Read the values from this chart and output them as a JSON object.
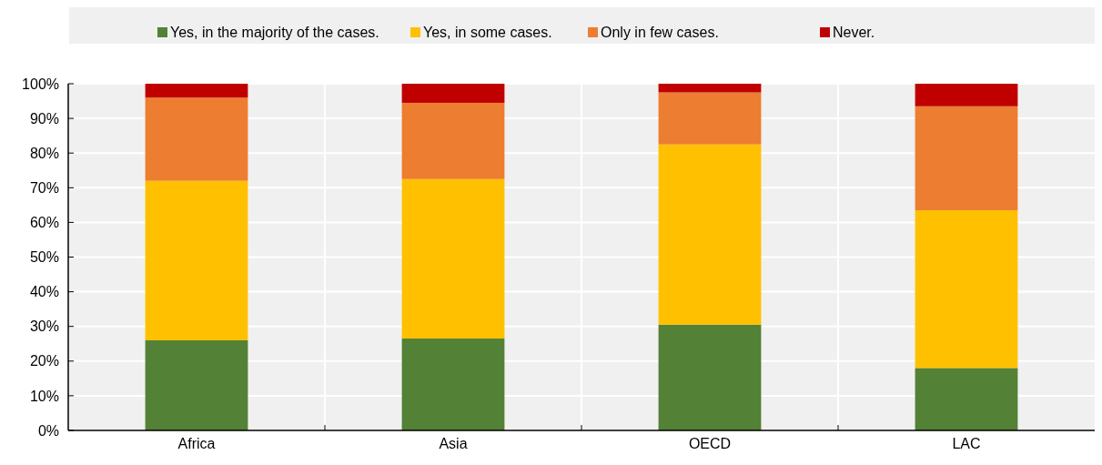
{
  "chart_data": {
    "type": "bar",
    "stacked": true,
    "categories": [
      "Africa",
      "Asia",
      "OECD",
      "LAC"
    ],
    "series": [
      {
        "name": "Yes, in the majority of the cases.",
        "color": "#538135",
        "values": [
          26,
          26.5,
          30.5,
          18
        ]
      },
      {
        "name": "Yes, in some cases.",
        "color": "#ffc000",
        "values": [
          46,
          46,
          52,
          45.5
        ]
      },
      {
        "name": "Only in few cases.",
        "color": "#ed7d31",
        "values": [
          24,
          22,
          15,
          30
        ]
      },
      {
        "name": "Never.",
        "color": "#c00000",
        "values": [
          4,
          5.5,
          2.5,
          6.5
        ]
      }
    ],
    "ylim": [
      0,
      100
    ],
    "yticks": [
      {
        "value": 0,
        "label": "0%"
      },
      {
        "value": 10,
        "label": "10%"
      },
      {
        "value": 20,
        "label": "20%"
      },
      {
        "value": 30,
        "label": "30%"
      },
      {
        "value": 40,
        "label": "40%"
      },
      {
        "value": 50,
        "label": "50%"
      },
      {
        "value": 60,
        "label": "60%"
      },
      {
        "value": 70,
        "label": "70%"
      },
      {
        "value": 80,
        "label": "80%"
      },
      {
        "value": 90,
        "label": "90%"
      },
      {
        "value": 100,
        "label": "100%"
      }
    ],
    "grid": true,
    "legend": "top"
  }
}
